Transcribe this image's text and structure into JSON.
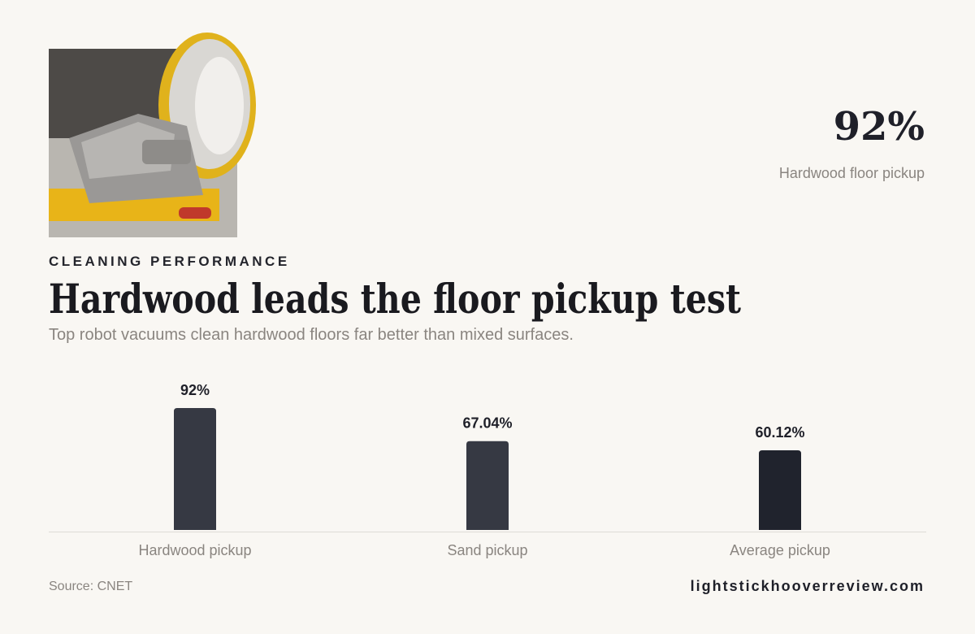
{
  "eyebrow": "CLEANING PERFORMANCE",
  "highlight": {
    "value": "92%",
    "label": "Hardwood floor pickup"
  },
  "footer": {
    "source": "Source: CNET",
    "site": "lightstickhooverreview.com"
  },
  "chart_data": {
    "type": "bar",
    "title": "Hardwood leads the floor pickup test",
    "subtitle": "Top robot vacuums clean hardwood floors far better than mixed surfaces.",
    "categories": [
      "Hardwood pickup",
      "Sand pickup",
      "Average pickup"
    ],
    "values": [
      92,
      67.04,
      60.12
    ],
    "value_labels": [
      "92%",
      "67.04%",
      "60.12%"
    ],
    "colors": [
      "#363943",
      "#363943",
      "#20232d"
    ]
  }
}
